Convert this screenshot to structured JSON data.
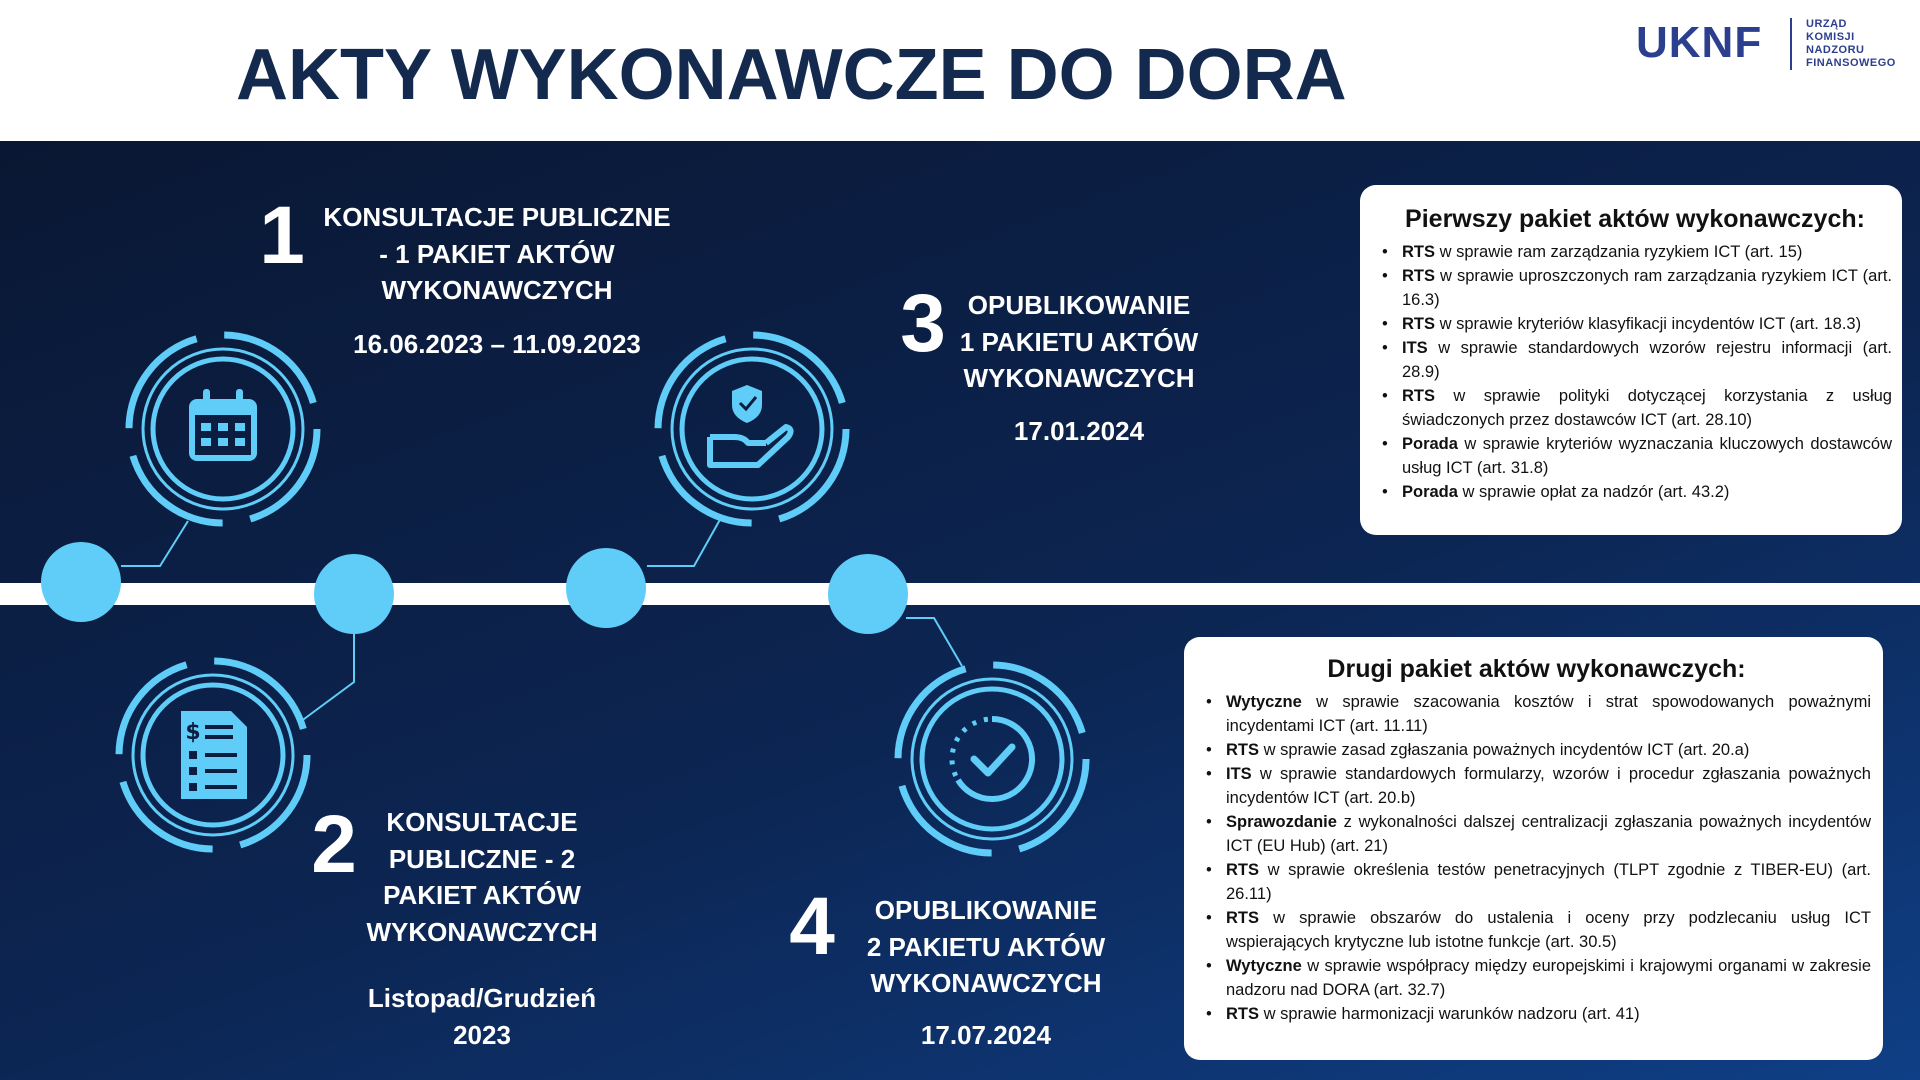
{
  "header": {
    "title": "AKTY WYKONAWCZE DO DORA",
    "logo": {
      "mark": "UKNF",
      "lines": [
        "URZĄD",
        "KOMISJI",
        "NADZORU",
        "FINANSOWEGO"
      ]
    }
  },
  "steps": [
    {
      "number": "1",
      "title": [
        "KONSULTACJE PUBLICZNE",
        "- 1 PAKIET AKTÓW",
        "WYKONAWCZYCH"
      ],
      "date": [
        "16.06.2023 – 11.09.2023"
      ]
    },
    {
      "number": "2",
      "title": [
        "KONSULTACJE",
        "PUBLICZNE - 2",
        "PAKIET AKTÓW",
        "WYKONAWCZYCH"
      ],
      "date": [
        "Listopad/Grudzień",
        "2023"
      ]
    },
    {
      "number": "3",
      "title": [
        "OPUBLIKOWANIE",
        "1 PAKIETU AKTÓW",
        "WYKONAWCZYCH"
      ],
      "date": [
        "17.01.2024"
      ]
    },
    {
      "number": "4",
      "title": [
        "OPUBLIKOWANIE",
        "2 PAKIETU AKTÓW",
        "WYKONAWCZYCH"
      ],
      "date": [
        "17.07.2024"
      ]
    }
  ],
  "packages": [
    {
      "title": "Pierwszy pakiet aktów wykonawczych:",
      "items": [
        {
          "bold": "RTS",
          "text": "w sprawie ram zarządzania ryzykiem ICT (art. 15)"
        },
        {
          "bold": "RTS",
          "text": "w sprawie uproszczonych ram zarządzania ryzykiem ICT (art. 16.3)"
        },
        {
          "bold": "RTS",
          "text": "w sprawie kryteriów klasyfikacji incydentów ICT (art. 18.3)"
        },
        {
          "bold": "ITS",
          "text": "w sprawie standardowych wzorów rejestru informacji (art. 28.9)"
        },
        {
          "bold": "RTS",
          "text": "w sprawie polityki dotyczącej korzystania z usług świadczonych przez dostawców ICT (art. 28.10)"
        },
        {
          "bold": "Porada",
          "text": "w sprawie kryteriów wyznaczania kluczowych dostawców usług ICT (art. 31.8)"
        },
        {
          "bold": "Porada",
          "text": "w sprawie opłat za nadzór (art. 43.2)"
        }
      ]
    },
    {
      "title": "Drugi pakiet aktów wykonawczych:",
      "items": [
        {
          "bold": "Wytyczne",
          "text": "w sprawie szacowania kosztów i strat spowodowanych poważnymi incydentami ICT (art. 11.11)"
        },
        {
          "bold": "RTS",
          "text": "w sprawie zasad zgłaszania poważnych incydentów ICT (art. 20.a)"
        },
        {
          "bold": "ITS",
          "text": "w sprawie standardowych formularzy, wzorów i procedur zgłaszania poważnych incydentów ICT (art. 20.b)"
        },
        {
          "bold": "Sprawozdanie",
          "text": "z wykonalności dalszej centralizacji zgłaszania poważnych incydentów ICT (EU Hub) (art. 21)"
        },
        {
          "bold": "RTS",
          "text": "w sprawie określenia testów penetracyjnych (TLPT zgodnie z TIBER-EU) (art. 26.11)"
        },
        {
          "bold": "RTS",
          "text": "w sprawie obszarów do ustalenia i oceny przy podzlecaniu usług ICT wspierających krytyczne lub istotne funkcje (art. 30.5)"
        },
        {
          "bold": "Wytyczne",
          "text": "w sprawie współpracy między europejskimi i krajowymi organami w zakresie nadzoru nad DORA (art. 32.7)"
        },
        {
          "bold": "RTS",
          "text": "w sprawie harmonizacji warunków nadzoru (art. 41)"
        }
      ]
    }
  ]
}
